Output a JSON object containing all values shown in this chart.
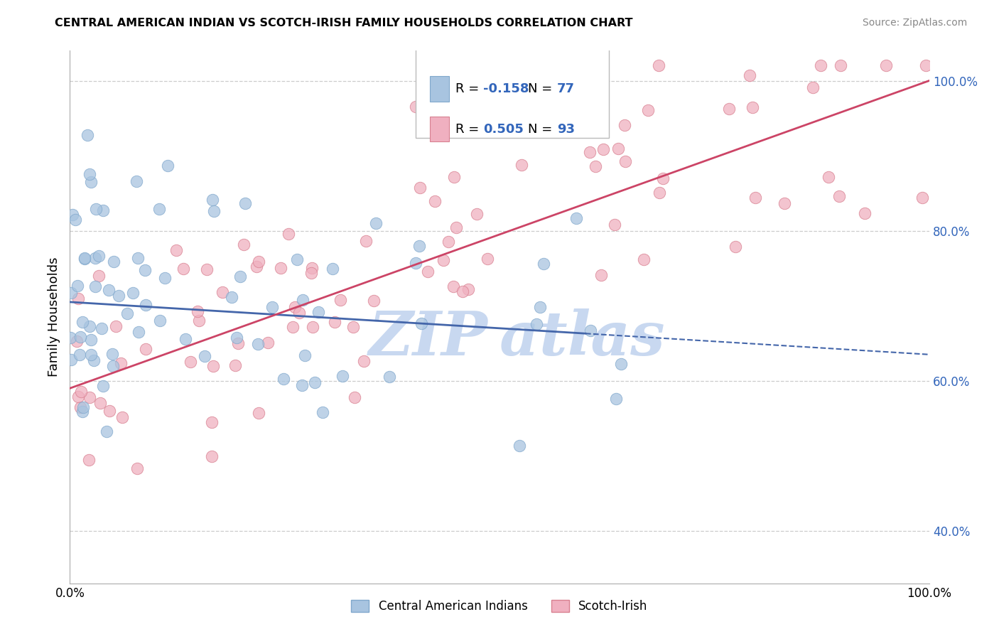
{
  "title": "CENTRAL AMERICAN INDIAN VS SCOTCH-IRISH FAMILY HOUSEHOLDS CORRELATION CHART",
  "source": "Source: ZipAtlas.com",
  "ylabel": "Family Households",
  "blue_R": -0.158,
  "blue_N": 77,
  "pink_R": 0.505,
  "pink_N": 93,
  "blue_color": "#a8c4e0",
  "blue_edge": "#80a8cc",
  "pink_color": "#f0b0c0",
  "pink_edge": "#d88090",
  "blue_line_color": "#4466aa",
  "pink_line_color": "#cc4466",
  "watermark_color": "#c8d8f0",
  "legend_label_blue": "Central American Indians",
  "legend_label_pink": "Scotch-Irish",
  "xlim": [
    0.0,
    100.0
  ],
  "ylim": [
    33.0,
    104.0
  ],
  "ytick_vals": [
    40.0,
    60.0,
    80.0,
    100.0
  ],
  "ytick_labels": [
    "40.0%",
    "60.0%",
    "80.0%",
    "100.0%"
  ],
  "blue_intercept": 70.5,
  "blue_slope": -0.07,
  "pink_intercept": 59.0,
  "pink_slope": 0.41
}
